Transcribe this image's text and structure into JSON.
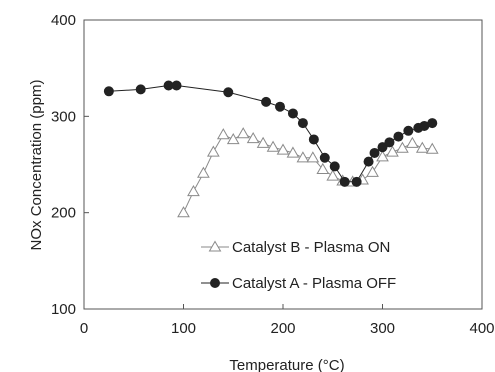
{
  "chart_data": {
    "type": "scatter",
    "title": "",
    "xlabel": "Temperature (°C)",
    "ylabel": "NOx Concentration (ppm)",
    "xlim": [
      0,
      400
    ],
    "ylim": [
      100,
      400
    ],
    "x_ticks": [
      "0",
      "100",
      "200",
      "300",
      "400"
    ],
    "y_ticks": [
      "100",
      "200",
      "300",
      "400"
    ],
    "grid": false,
    "legend_position": "bottom-center",
    "series": [
      {
        "name": "Catalyst B - Plasma ON",
        "marker": "open-triangle",
        "color": "#8a8a8a",
        "x": [
          100,
          110,
          120,
          130,
          140,
          150,
          160,
          170,
          180,
          190,
          200,
          210,
          220,
          230,
          240,
          250,
          260,
          270,
          280,
          290,
          300,
          310,
          320,
          330,
          340,
          350
        ],
        "y": [
          200,
          222,
          241,
          263,
          281,
          276,
          282,
          277,
          272,
          268,
          265,
          262,
          257,
          257,
          245,
          238,
          233,
          232,
          234,
          242,
          258,
          263,
          267,
          272,
          267,
          266
        ]
      },
      {
        "name": "Catalyst A - Plasma OFF",
        "marker": "filled-circle",
        "color": "#222222",
        "x": [
          25,
          57,
          85,
          93,
          145,
          183,
          197,
          210,
          220,
          231,
          242,
          252,
          262,
          274,
          286,
          292,
          300,
          307,
          316,
          326,
          336,
          342,
          350
        ],
        "y": [
          326,
          328,
          332,
          332,
          325,
          315,
          310,
          303,
          293,
          276,
          257,
          248,
          232,
          232,
          253,
          262,
          268,
          273,
          279,
          285,
          288,
          290,
          293
        ]
      }
    ]
  }
}
